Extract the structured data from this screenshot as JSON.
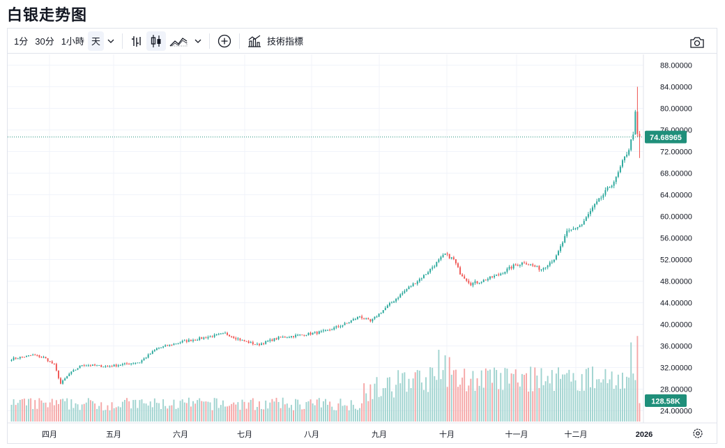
{
  "title": "白银走势图",
  "toolbar": {
    "interval_1m": "1分",
    "interval_30m": "30分",
    "interval_1h": "1小時",
    "interval_day": "天",
    "indicators_label": "技術指標",
    "icons": [
      "bar-chart-icon",
      "candlestick-icon",
      "area-chart-icon",
      "chevron-down-icon",
      "add-circle-icon",
      "indicators-icon",
      "camera-icon"
    ]
  },
  "colors": {
    "up": "#26a69a",
    "down": "#ef5350",
    "vol_up": "#9fd3cf",
    "vol_down": "#f5a6a6",
    "price_tag": "#1f8f7a",
    "grid": "#f0f3fa",
    "text": "#131722"
  },
  "chart_data": {
    "type": "candlestick",
    "title": "白银走势图",
    "y_axis": {
      "min": 22,
      "max": 90,
      "ticks": [
        "24.00000",
        "28.00000",
        "32.00000",
        "36.00000",
        "40.00000",
        "44.00000",
        "48.00000",
        "52.00000",
        "56.00000",
        "60.00000",
        "64.00000",
        "68.00000",
        "72.00000",
        "76.00000",
        "80.00000",
        "84.00000",
        "88.00000"
      ]
    },
    "x_axis": {
      "labels": [
        "四月",
        "五月",
        "六月",
        "七月",
        "八月",
        "九月",
        "十月",
        "十一月",
        "十二月",
        "2026"
      ]
    },
    "last_price": "74.68965",
    "last_volume": "128.58K",
    "price_path_knots": [
      [
        0,
        33.6
      ],
      [
        10,
        34.3
      ],
      [
        15,
        33.9
      ],
      [
        20,
        32.5
      ],
      [
        23,
        29.0
      ],
      [
        27,
        30.8
      ],
      [
        33,
        32.5
      ],
      [
        45,
        32.2
      ],
      [
        60,
        33.0
      ],
      [
        68,
        35.5
      ],
      [
        80,
        36.8
      ],
      [
        90,
        37.5
      ],
      [
        100,
        38.3
      ],
      [
        108,
        37.0
      ],
      [
        115,
        36.2
      ],
      [
        125,
        37.5
      ],
      [
        135,
        38.0
      ],
      [
        147,
        38.7
      ],
      [
        157,
        40.2
      ],
      [
        163,
        41.5
      ],
      [
        168,
        40.5
      ],
      [
        175,
        43.0
      ],
      [
        185,
        46.5
      ],
      [
        193,
        49.0
      ],
      [
        198,
        51.0
      ],
      [
        203,
        53.0
      ],
      [
        207,
        52.0
      ],
      [
        210,
        49.5
      ],
      [
        215,
        47.5
      ],
      [
        220,
        48.0
      ],
      [
        228,
        49.2
      ],
      [
        235,
        50.8
      ],
      [
        240,
        51.5
      ],
      [
        248,
        50.2
      ],
      [
        255,
        52.5
      ],
      [
        260,
        57.0
      ],
      [
        267,
        58.5
      ],
      [
        272,
        61.5
      ],
      [
        278,
        64.5
      ],
      [
        283,
        67.0
      ],
      [
        286,
        70.0
      ],
      [
        289,
        72.5
      ],
      [
        291,
        75.5
      ],
      [
        292,
        79.0
      ],
      [
        293,
        75.0
      ],
      [
        294,
        74.7
      ]
    ],
    "volume_range": [
      0,
      100
    ],
    "volume_spikes": [
      {
        "at": 200,
        "value": 78
      },
      {
        "at": 203,
        "value": 72
      },
      {
        "at": 205,
        "value": 70
      },
      {
        "at": 248,
        "value": 58
      },
      {
        "at": 253,
        "value": 56
      },
      {
        "at": 278,
        "value": 57
      },
      {
        "at": 290,
        "value": 86
      },
      {
        "at": 293,
        "value": 93
      }
    ]
  }
}
